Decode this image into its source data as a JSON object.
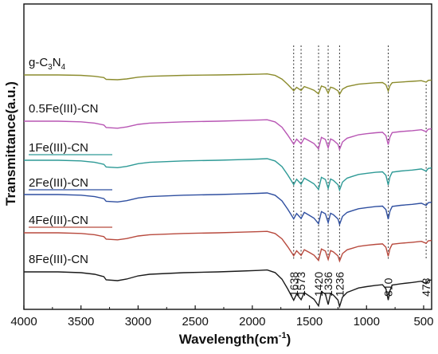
{
  "chart_data": {
    "type": "line",
    "xlabel": "Wavelength(cm",
    "xlabel_sup": "-1",
    "xlabel_close": ")",
    "ylabel": "Transmittance(a.u.)",
    "xlim": [
      4000,
      430
    ],
    "x_reversed": true,
    "xticks": [
      4000,
      3500,
      3000,
      2500,
      2000,
      1500,
      1000,
      500
    ],
    "grid": false,
    "reference_lines": [
      {
        "x": 1638,
        "label": "1638"
      },
      {
        "x": 1573,
        "label": "1573"
      },
      {
        "x": 1420,
        "label": "1420"
      },
      {
        "x": 1336,
        "label": "1336"
      },
      {
        "x": 1236,
        "label": "1236"
      },
      {
        "x": 810,
        "label": "810"
      },
      {
        "x": 478,
        "label": "478"
      }
    ],
    "series": [
      {
        "name": "g-C3N4",
        "label_main": "g-C",
        "label_sub1": "3",
        "label_mid": "N",
        "label_sub2": "4",
        "color": "#8c8c2e",
        "offset": 5
      },
      {
        "name": "0.5Fe(III)-CN",
        "color": "#b856b4",
        "offset": 4
      },
      {
        "name": "1Fe(III)-CN",
        "color": "#2e9a96",
        "offset": 3
      },
      {
        "name": "2Fe(III)-CN",
        "color": "#2f4fa0",
        "offset": 2
      },
      {
        "name": "4Fe(III)-CN",
        "color": "#b84a3e",
        "offset": 1
      },
      {
        "name": "8Fe(III)-CN",
        "color": "#1a1a1a",
        "offset": 0
      }
    ]
  }
}
